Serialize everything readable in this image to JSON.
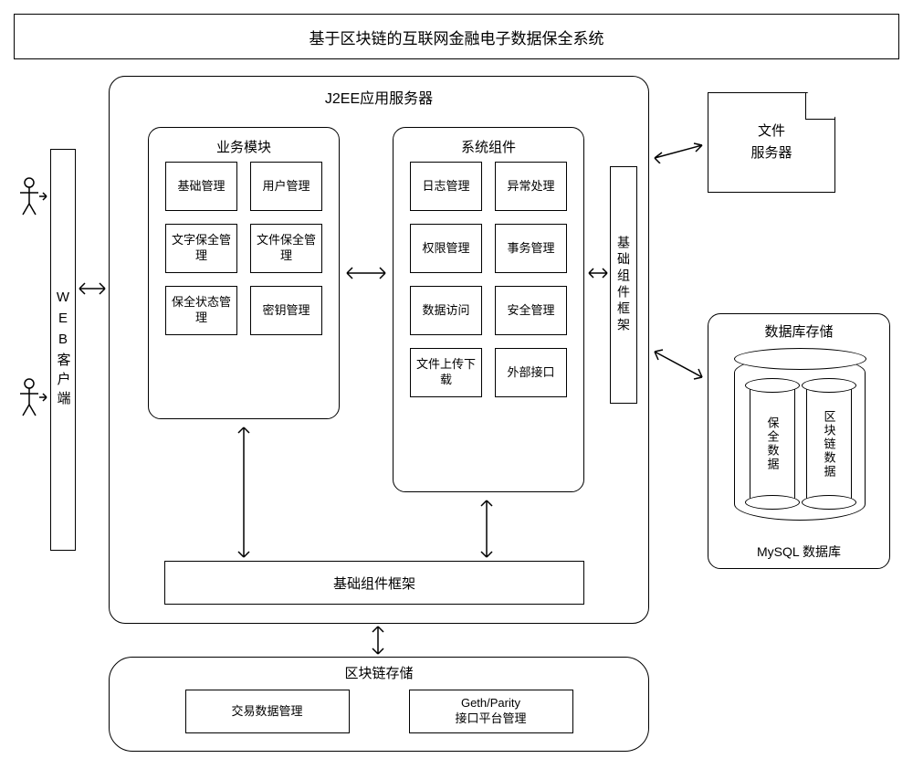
{
  "title": "基于区块链的互联网金融电子数据保全系统",
  "web_client": "WEB客户端",
  "j2ee": {
    "title": "J2EE应用服务器",
    "biz": {
      "title": "业务模块",
      "cells": [
        "基础管理",
        "用户管理",
        "文字保全管理",
        "文件保全管理",
        "保全状态管理",
        "密钥管理"
      ]
    },
    "sys": {
      "title": "系统组件",
      "cells": [
        "日志管理",
        "异常处理",
        "权限管理",
        "事务管理",
        "数据访问",
        "安全管理",
        "文件上传下载",
        "外部接口"
      ]
    },
    "base_bottom": "基础组件框架",
    "base_right": "基础组件框架"
  },
  "file_server": "文件\n服务器",
  "db": {
    "title": "数据库存储",
    "scroll1": "保全数据",
    "scroll2": "区块链数据",
    "mysql": "MySQL 数据库"
  },
  "blockchain": {
    "title": "区块链存储",
    "cell1": "交易数据管理",
    "cell2": "Geth/Parity\n接口平台管理"
  },
  "colors": {
    "stroke": "#000000",
    "bg": "#ffffff"
  }
}
